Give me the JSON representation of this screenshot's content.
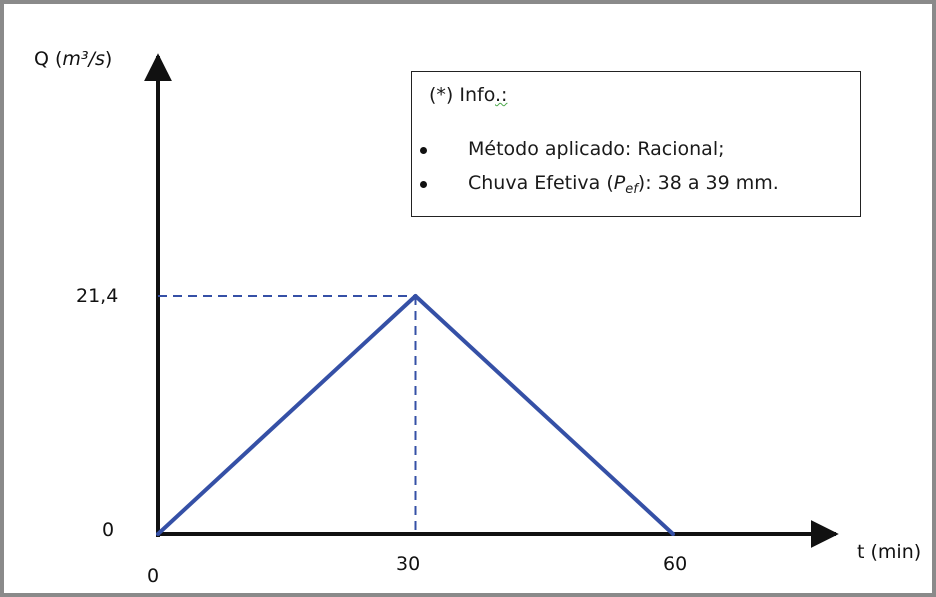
{
  "chart_data": {
    "type": "line",
    "ylabel": "Q (m³/s)",
    "ylabel_parts": {
      "prefix": "Q (",
      "math": "m³/s",
      "suffix": ")"
    },
    "xlabel": "t (min)",
    "x_ticks": [
      "0",
      "30",
      "60"
    ],
    "y_ticks": [
      "0",
      "21,4"
    ],
    "x": [
      0,
      30,
      60
    ],
    "y": [
      0,
      21.4,
      0
    ],
    "xlim": [
      0,
      60
    ],
    "ylim": [
      0,
      21.4
    ],
    "peak_guides": true,
    "line_color": "#3550a6",
    "info": {
      "title_prefix": "(*) Info",
      "title_suffix": ".:",
      "items": [
        {
          "text": "Método aplicado: Racional;"
        },
        {
          "before": "Chuva Efetiva (",
          "symbol": "P",
          "subscript": "ef",
          "after": "): 38 a 39 mm."
        }
      ]
    }
  }
}
